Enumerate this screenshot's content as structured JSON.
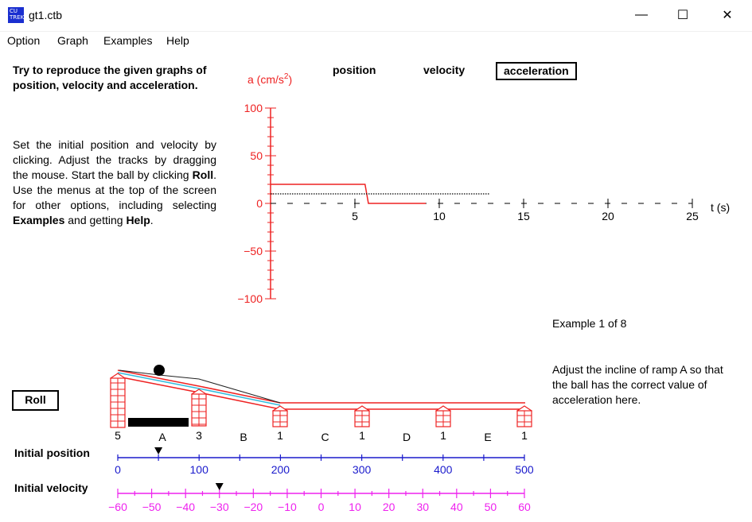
{
  "window": {
    "title": "gt1.ctb",
    "minimize_glyph": "—",
    "maximize_glyph": "☐",
    "close_glyph": "✕"
  },
  "menu": {
    "items": [
      "Option",
      "Graph",
      "Examples",
      "Help"
    ]
  },
  "intro": {
    "heading": "Try to reproduce the given graphs of position, velocity and acceleration.",
    "instructions_parts": [
      {
        "t": "Set the initial position and velocity by clicking.  Adjust the tracks by dragging the mouse.  Start the ball by clicking ",
        "b": false
      },
      {
        "t": "Roll",
        "b": true
      },
      {
        "t": ".  Use the menus at the top of the screen for other options, including selecting ",
        "b": false
      },
      {
        "t": "Examples",
        "b": true
      },
      {
        "t": " and getting ",
        "b": false
      },
      {
        "t": "Help",
        "b": true
      },
      {
        "t": ".",
        "b": false
      }
    ]
  },
  "graph_tabs": {
    "position": "position",
    "velocity": "velocity",
    "acceleration": "acceleration",
    "selected": "acceleration"
  },
  "colors": {
    "graph_axis": "#ee2222",
    "position_scale": "#1a1acc",
    "velocity_scale": "#ee22ee",
    "track": "#ee2222",
    "ramp_line_blue": "#33bbdd"
  },
  "chart_data": {
    "type": "line",
    "ylabel_prefix": "a (cm/s",
    "ylabel_sup": "2",
    "ylabel_suffix": ")",
    "xlabel": "t (s)",
    "ylim": [
      -100,
      100
    ],
    "yticks": [
      100,
      50,
      0,
      -50,
      -100
    ],
    "ytick_labels": [
      "100",
      "50",
      "0",
      "−50",
      "−100"
    ],
    "xlim": [
      0,
      25
    ],
    "xticks": [
      5,
      10,
      15,
      20,
      25
    ],
    "xtick_labels": [
      "5",
      "10",
      "15",
      "20",
      "25"
    ],
    "series": [
      {
        "style": "solid-red",
        "points": [
          [
            0,
            20
          ],
          [
            5.6,
            20
          ],
          [
            5.8,
            0
          ],
          [
            9.2,
            0
          ]
        ]
      },
      {
        "style": "dotted-black",
        "points": [
          [
            0,
            10
          ],
          [
            13,
            10
          ]
        ]
      }
    ]
  },
  "example": {
    "counter": "Example 1 of 8",
    "hint": "Adjust the incline of ramp A so that the ball has the correct value of acceleration here."
  },
  "roll_button": "Roll",
  "track": {
    "support_heights": [
      "5",
      "3",
      "1",
      "1",
      "1",
      "1"
    ],
    "segments": [
      "A",
      "B",
      "C",
      "D",
      "E"
    ]
  },
  "initial_position": {
    "label": "Initial position",
    "ticks": [
      "0",
      "100",
      "200",
      "300",
      "400",
      "500"
    ],
    "value": 50
  },
  "initial_velocity": {
    "label": "Initial velocity",
    "ticks": [
      "−60",
      "−50",
      "−40",
      "−30",
      "−20",
      "−10",
      "0",
      "10",
      "20",
      "30",
      "40",
      "50",
      "60"
    ],
    "value": -30
  }
}
